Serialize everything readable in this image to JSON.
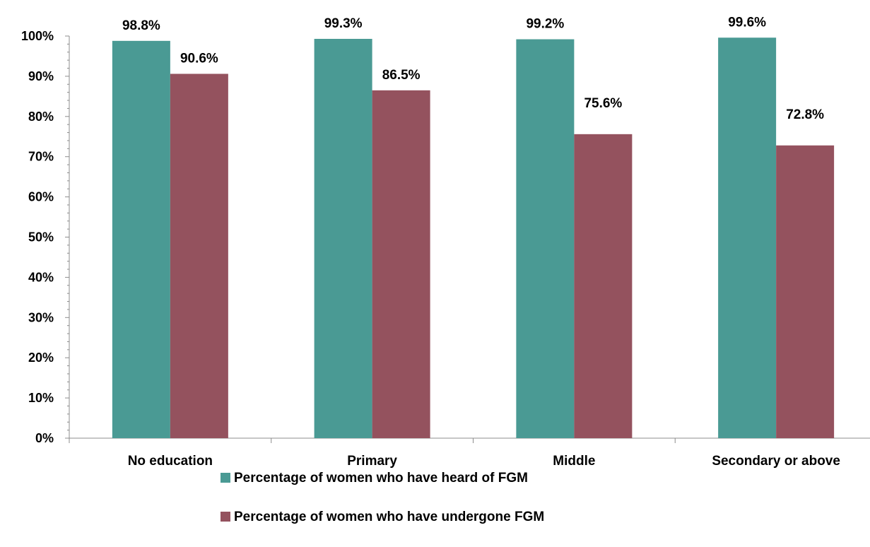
{
  "chart_data": {
    "type": "bar",
    "categories": [
      "No education",
      "Primary",
      "Middle",
      "Secondary or above"
    ],
    "series": [
      {
        "name": "Percentage of women who have heard of FGM",
        "values": [
          98.8,
          99.3,
          99.2,
          99.6
        ],
        "color": "#4a9a94"
      },
      {
        "name": "Percentage of women who have undergone FGM",
        "values": [
          90.6,
          86.5,
          75.6,
          72.8
        ],
        "color": "#94525e"
      }
    ],
    "data_labels": [
      [
        "98.8%",
        "99.3%",
        "99.2%",
        "99.6%"
      ],
      [
        "90.6%",
        "86.5%",
        "75.6%",
        "72.8%"
      ]
    ],
    "yticks": [
      "0%",
      "10%",
      "20%",
      "30%",
      "40%",
      "50%",
      "60%",
      "70%",
      "80%",
      "90%",
      "100%"
    ],
    "ylim": [
      0,
      100
    ],
    "title": "",
    "xlabel": "",
    "ylabel": "",
    "grid": false,
    "legend_position": "bottom"
  }
}
